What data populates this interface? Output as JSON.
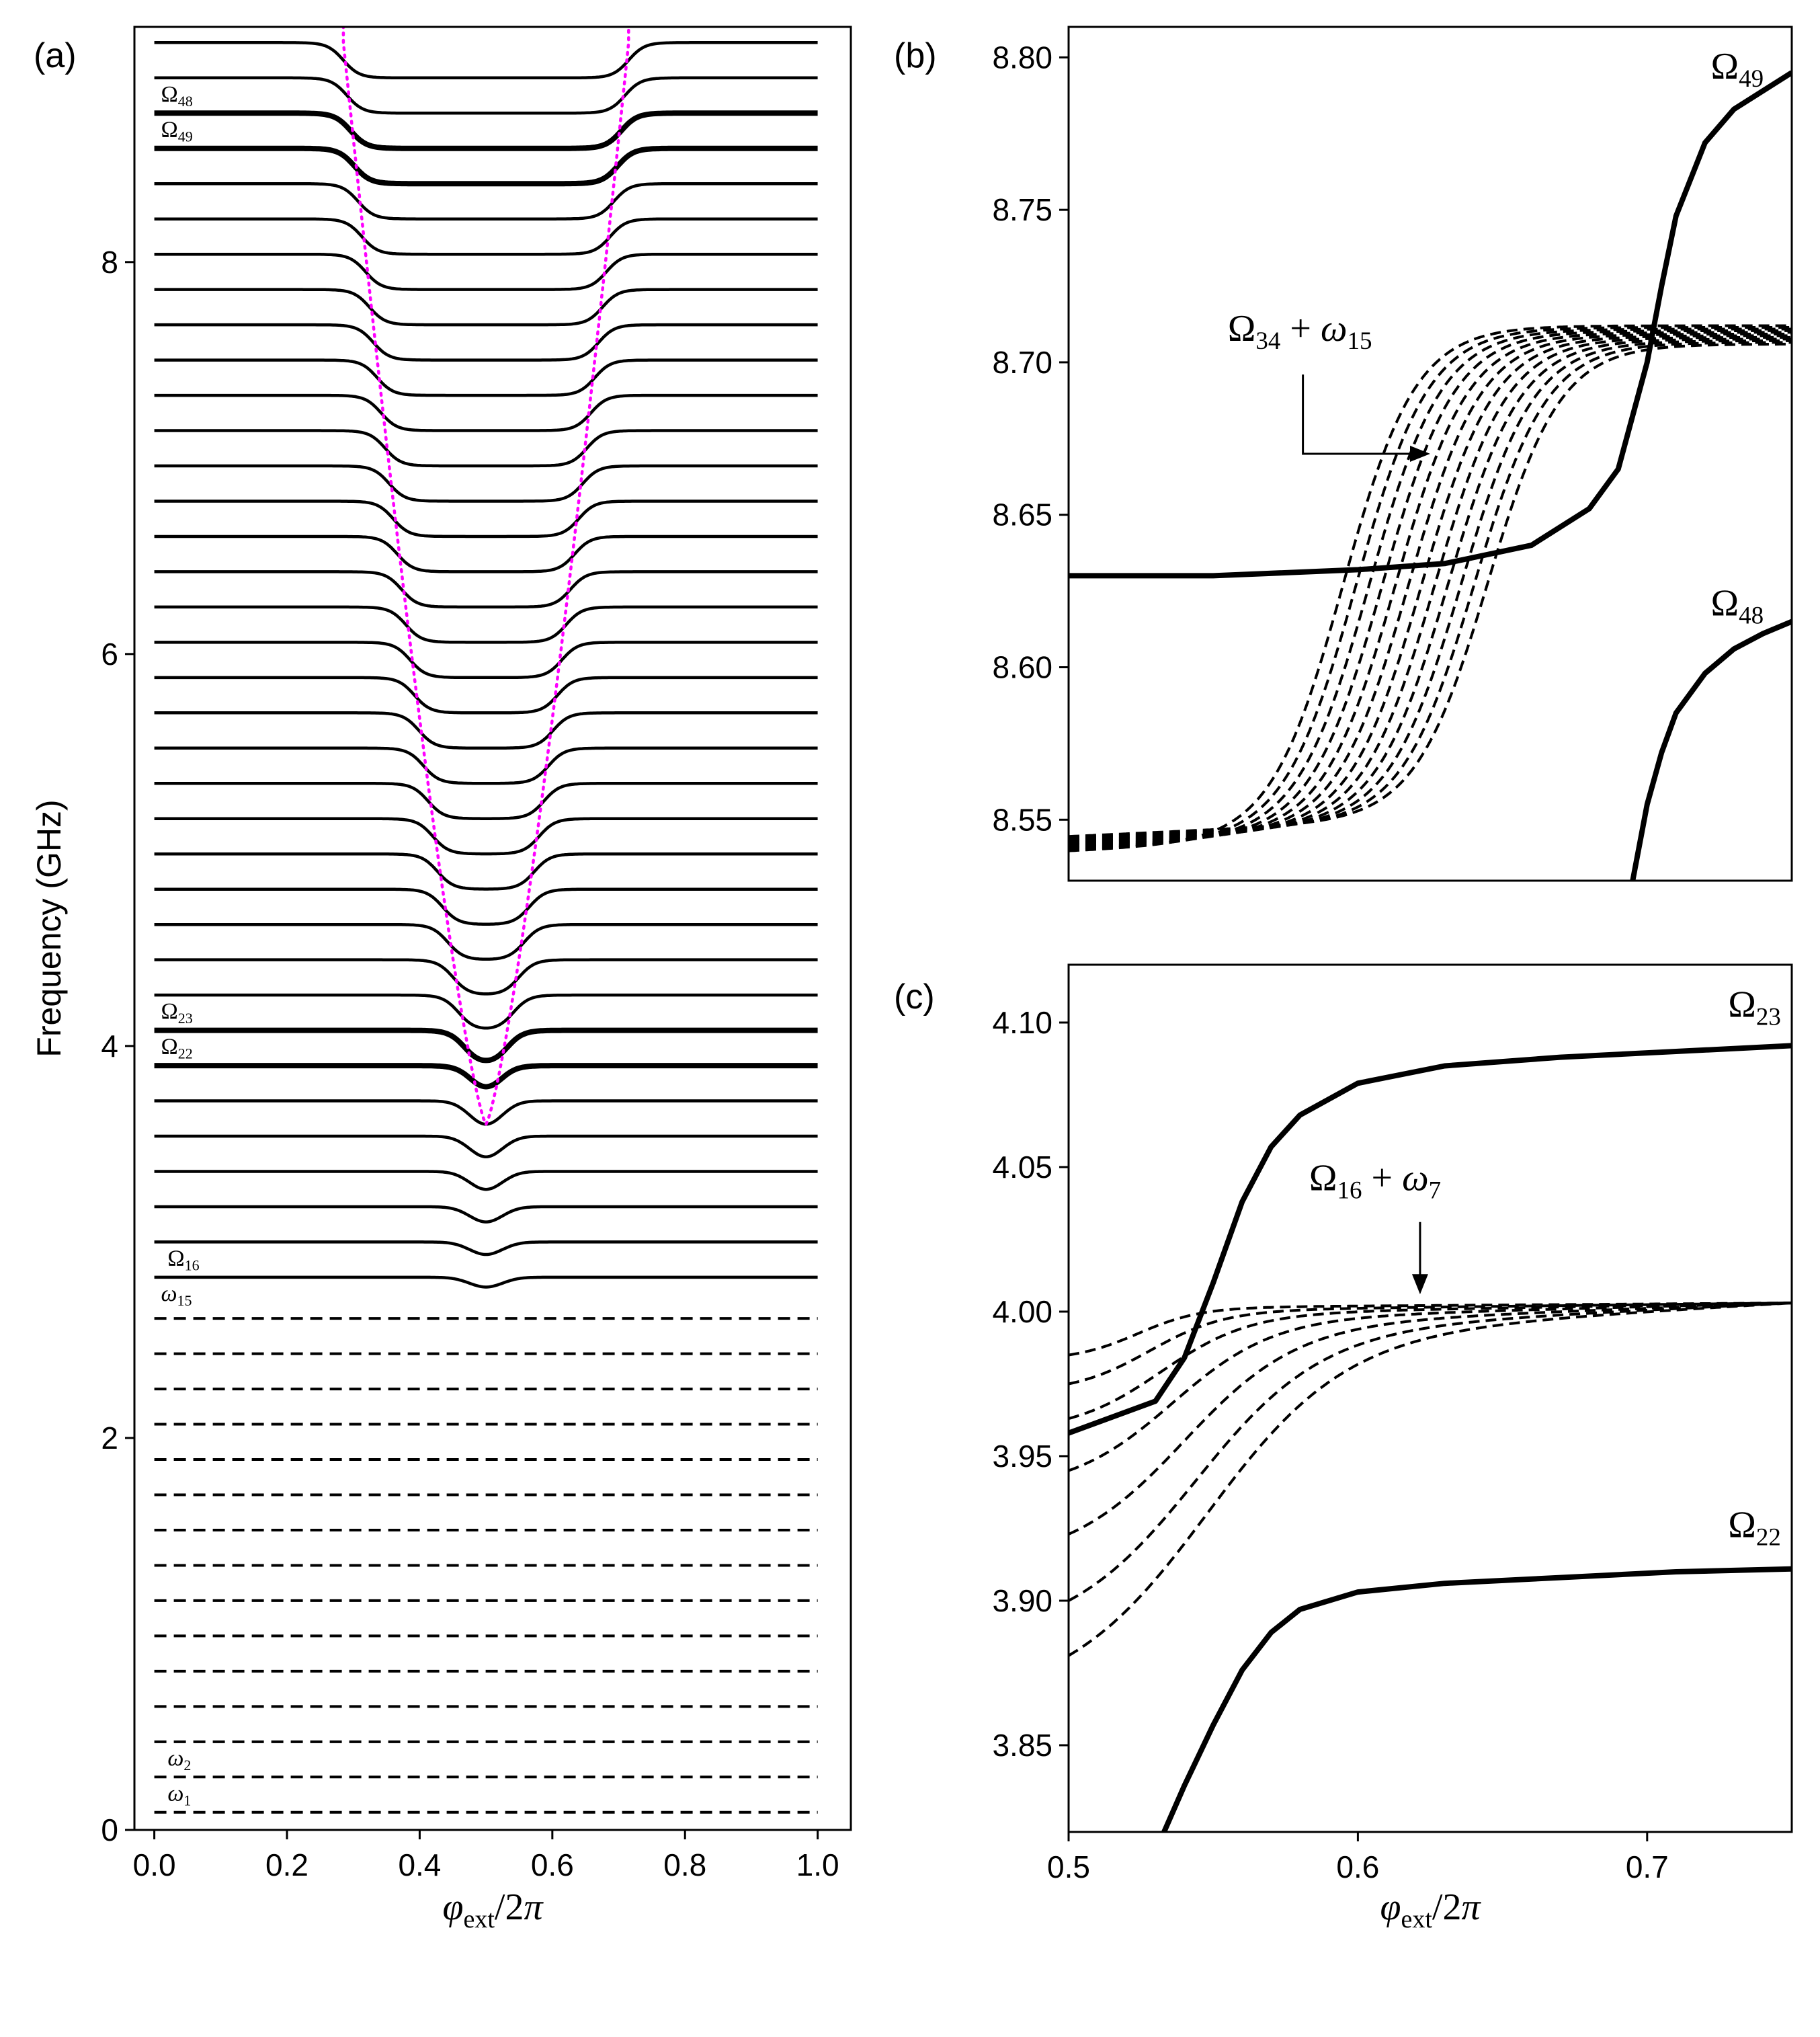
{
  "colors": {
    "line": "#000000",
    "guide": "#ff00ff",
    "background": "#ffffff"
  },
  "chart_data": [
    {
      "panel": "(a)",
      "type": "line",
      "xlabel": "φext/2π",
      "ylabel": "Frequency (GHz)",
      "xlim": [
        -0.03,
        1.05
      ],
      "ylim": [
        0,
        9.2
      ],
      "xticks": [
        0.0,
        0.2,
        0.4,
        0.6,
        0.8,
        1.0
      ],
      "xtick_labels": [
        "0.0",
        "0.2",
        "0.4",
        "0.6",
        "0.8",
        "1.0"
      ],
      "yticks": [
        0,
        2,
        4,
        6,
        8
      ],
      "ytick_labels": [
        "0",
        "2",
        "4",
        "6",
        "8"
      ],
      "flat_mode_levels": [
        0.09,
        0.27,
        0.45,
        0.63,
        0.81,
        0.99,
        1.17,
        1.35,
        1.53,
        1.71,
        1.89,
        2.07,
        2.25,
        2.43,
        2.61
      ],
      "flux_mode_levels": [
        2.82,
        3.0,
        3.18,
        3.36,
        3.54,
        3.72,
        3.9,
        4.08,
        4.26,
        4.44,
        4.62,
        4.8,
        4.98,
        5.16,
        5.34,
        5.52,
        5.7,
        5.88,
        6.06,
        6.24,
        6.42,
        6.6,
        6.78,
        6.96,
        7.14,
        7.32,
        7.5,
        7.68,
        7.86,
        8.04,
        8.22,
        8.4,
        8.58,
        8.76,
        8.94,
        9.12
      ],
      "highlighted_modes": [
        3.9,
        4.08,
        8.58,
        8.76
      ],
      "dip_bottom": 3.6,
      "dip_center": 0.5,
      "mode_labels": [
        {
          "text": "Ω48",
          "x": 0.01,
          "y": 8.82
        },
        {
          "text": "Ω49",
          "x": 0.01,
          "y": 8.64
        },
        {
          "text": "Ω23",
          "x": 0.01,
          "y": 4.14
        },
        {
          "text": "Ω22",
          "x": 0.01,
          "y": 3.96
        },
        {
          "text": "Ω16",
          "x": 0.02,
          "y": 2.88
        },
        {
          "text": "ω15",
          "x": 0.01,
          "y": 2.7
        },
        {
          "text": "ω2",
          "x": 0.02,
          "y": 0.33
        },
        {
          "text": "ω1",
          "x": 0.02,
          "y": 0.15
        }
      ]
    },
    {
      "panel": "(b)",
      "type": "line",
      "xlim": [
        0.5,
        0.75
      ],
      "ylim": [
        8.53,
        8.81
      ],
      "yticks": [
        8.55,
        8.6,
        8.65,
        8.7,
        8.75,
        8.8
      ],
      "ytick_labels": [
        "8.55",
        "8.60",
        "8.65",
        "8.70",
        "8.75",
        "8.80"
      ],
      "series": [
        {
          "name": "Ω49",
          "style": "solid-thick",
          "x": [
            0.5,
            0.55,
            0.6,
            0.63,
            0.66,
            0.68,
            0.69,
            0.7,
            0.705,
            0.71,
            0.72,
            0.73,
            0.75
          ],
          "y": [
            8.63,
            8.63,
            8.632,
            8.634,
            8.64,
            8.652,
            8.665,
            8.7,
            8.725,
            8.748,
            8.772,
            8.783,
            8.795
          ]
        },
        {
          "name": "Ω48",
          "style": "solid-thick",
          "x": [
            0.695,
            0.7,
            0.705,
            0.71,
            0.72,
            0.73,
            0.74,
            0.75
          ],
          "y": [
            8.53,
            8.555,
            8.572,
            8.585,
            8.598,
            8.606,
            8.611,
            8.615
          ]
        }
      ],
      "dashed_family": {
        "count": 12,
        "low": [
          8.543,
          8.55
        ],
        "high": [
          8.712,
          8.706
        ],
        "centers": [
          0.595,
          0.645
        ]
      },
      "annotations": [
        {
          "text": "Ω34 + ω15",
          "x": 0.555,
          "y": 8.707
        }
      ],
      "curve_labels": [
        {
          "text": "Ω49",
          "x": 0.722,
          "y": 8.793
        },
        {
          "text": "Ω48",
          "x": 0.722,
          "y": 8.617
        }
      ]
    },
    {
      "panel": "(c)",
      "type": "line",
      "xlabel": "φext/2π",
      "xlim": [
        0.5,
        0.75
      ],
      "ylim": [
        3.82,
        4.12
      ],
      "xticks": [
        0.5,
        0.6,
        0.7
      ],
      "xtick_labels": [
        "0.5",
        "0.6",
        "0.7"
      ],
      "yticks": [
        3.85,
        3.9,
        3.95,
        4.0,
        4.05,
        4.1
      ],
      "ytick_labels": [
        "3.85",
        "3.90",
        "3.95",
        "4.00",
        "4.05",
        "4.10"
      ],
      "series": [
        {
          "name": "Ω23",
          "style": "solid-thick",
          "x": [
            0.5,
            0.53,
            0.54,
            0.55,
            0.56,
            0.57,
            0.58,
            0.6,
            0.63,
            0.67,
            0.71,
            0.75
          ],
          "y": [
            3.958,
            3.969,
            3.984,
            4.01,
            4.038,
            4.057,
            4.068,
            4.079,
            4.085,
            4.088,
            4.09,
            4.092
          ]
        },
        {
          "name": "Ω22",
          "style": "solid-thick",
          "x": [
            0.533,
            0.54,
            0.55,
            0.56,
            0.57,
            0.58,
            0.6,
            0.63,
            0.67,
            0.71,
            0.75
          ],
          "y": [
            3.82,
            3.836,
            3.857,
            3.876,
            3.889,
            3.897,
            3.903,
            3.906,
            3.908,
            3.91,
            3.911
          ]
        }
      ],
      "dashed_family": {
        "starts": [
          3.881,
          3.9,
          3.923,
          3.945,
          3.963,
          3.975,
          3.985
        ],
        "end": 4.003
      },
      "annotations": [
        {
          "text": "Ω16 + ω7",
          "x": 0.618,
          "y": 4.035
        }
      ],
      "curve_labels": [
        {
          "text": "Ω23",
          "x": 0.728,
          "y": 4.102
        },
        {
          "text": "Ω22",
          "x": 0.728,
          "y": 3.922
        }
      ]
    }
  ]
}
